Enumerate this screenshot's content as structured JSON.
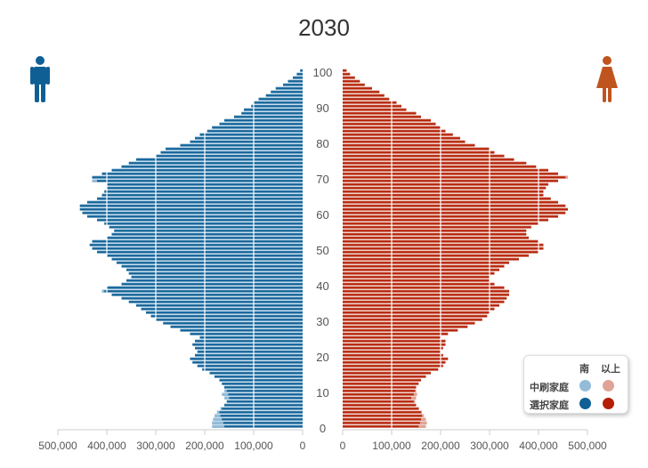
{
  "colors": {
    "male_dark": "#0f5f95",
    "male_light": "#93bcd8",
    "female_dark": "#b41f05",
    "female_light": "#e0a496",
    "axis": "#cccccc"
  },
  "chart_data": {
    "type": "bar",
    "subtype": "population-pyramid",
    "title": "2030",
    "age_labels": [
      "0",
      "10",
      "20",
      "30",
      "40",
      "50",
      "60",
      "70",
      "80",
      "90",
      "100"
    ],
    "left_ticks": [
      "500,000",
      "400,000",
      "300,000",
      "200,000",
      "100,000",
      "0"
    ],
    "right_ticks": [
      "0",
      "100,000",
      "200,000",
      "300,000",
      "400,000",
      "500,000"
    ],
    "xlim": [
      0,
      500000
    ],
    "ages": [
      0,
      100
    ],
    "legend": {
      "col_male": "南",
      "col_female": "以上",
      "row_light": "中刷家庭",
      "row_dark": "選択家庭"
    },
    "series": [
      {
        "name": "male_dark",
        "values": [
          160,
          162,
          165,
          168,
          170,
          165,
          160,
          155,
          150,
          152,
          155,
          160,
          165,
          170,
          180,
          190,
          205,
          215,
          225,
          230,
          220,
          215,
          220,
          225,
          220,
          210,
          230,
          250,
          270,
          285,
          300,
          310,
          320,
          330,
          340,
          355,
          370,
          390,
          405,
          400,
          370,
          360,
          350,
          355,
          360,
          370,
          380,
          390,
          400,
          420,
          430,
          435,
          430,
          400,
          390,
          385,
          395,
          405,
          420,
          440,
          450,
          455,
          455,
          440,
          420,
          410,
          405,
          400,
          400,
          420,
          430,
          410,
          390,
          370,
          355,
          340,
          300,
          290,
          280,
          250,
          230,
          220,
          210,
          195,
          185,
          170,
          160,
          140,
          125,
          120,
          105,
          100,
          90,
          75,
          65,
          55,
          40,
          30,
          20,
          12,
          5
        ]
      },
      {
        "name": "male_light",
        "values": [
          185,
          185,
          183,
          180,
          175,
          168,
          160,
          155,
          160,
          165,
          160,
          160,
          165,
          170,
          180,
          190,
          205,
          215,
          225,
          230,
          220,
          215,
          220,
          225,
          220,
          210,
          230,
          250,
          270,
          285,
          300,
          310,
          320,
          330,
          340,
          355,
          370,
          390,
          410,
          400,
          370,
          360,
          350,
          355,
          360,
          370,
          380,
          390,
          400,
          420,
          430,
          435,
          430,
          400,
          390,
          385,
          395,
          405,
          420,
          440,
          450,
          455,
          455,
          440,
          420,
          410,
          405,
          400,
          400,
          430,
          430,
          410,
          390,
          370,
          355,
          340,
          300,
          290,
          280,
          250,
          230,
          220,
          210,
          195,
          185,
          170,
          160,
          140,
          125,
          120,
          105,
          100,
          90,
          75,
          65,
          55,
          40,
          30,
          20,
          12,
          5
        ]
      },
      {
        "name": "female_dark",
        "values": [
          155,
          158,
          160,
          162,
          160,
          155,
          150,
          145,
          140,
          145,
          148,
          150,
          155,
          160,
          170,
          180,
          195,
          205,
          210,
          215,
          205,
          200,
          205,
          210,
          210,
          200,
          215,
          235,
          255,
          270,
          285,
          295,
          300,
          310,
          320,
          330,
          335,
          340,
          340,
          330,
          310,
          300,
          300,
          310,
          320,
          330,
          340,
          360,
          380,
          400,
          410,
          410,
          400,
          380,
          375,
          375,
          385,
          400,
          420,
          440,
          455,
          460,
          455,
          440,
          425,
          410,
          410,
          415,
          420,
          440,
          455,
          440,
          420,
          395,
          375,
          350,
          330,
          310,
          300,
          270,
          250,
          240,
          225,
          210,
          200,
          190,
          180,
          160,
          150,
          130,
          120,
          110,
          95,
          85,
          75,
          60,
          45,
          35,
          25,
          15,
          8
        ]
      },
      {
        "name": "female_light",
        "values": [
          170,
          172,
          170,
          166,
          162,
          156,
          150,
          148,
          150,
          152,
          150,
          150,
          155,
          160,
          170,
          180,
          195,
          205,
          210,
          215,
          205,
          200,
          205,
          210,
          210,
          200,
          215,
          235,
          255,
          270,
          285,
          295,
          300,
          310,
          320,
          330,
          335,
          340,
          340,
          330,
          310,
          300,
          300,
          310,
          320,
          330,
          340,
          360,
          380,
          400,
          410,
          410,
          400,
          380,
          375,
          375,
          385,
          400,
          420,
          440,
          455,
          460,
          455,
          440,
          425,
          410,
          410,
          415,
          420,
          440,
          460,
          440,
          420,
          395,
          375,
          350,
          330,
          310,
          300,
          270,
          250,
          240,
          225,
          210,
          200,
          190,
          180,
          160,
          150,
          130,
          120,
          110,
          95,
          85,
          75,
          60,
          45,
          35,
          25,
          15,
          8
        ]
      }
    ],
    "units": "thousands"
  }
}
